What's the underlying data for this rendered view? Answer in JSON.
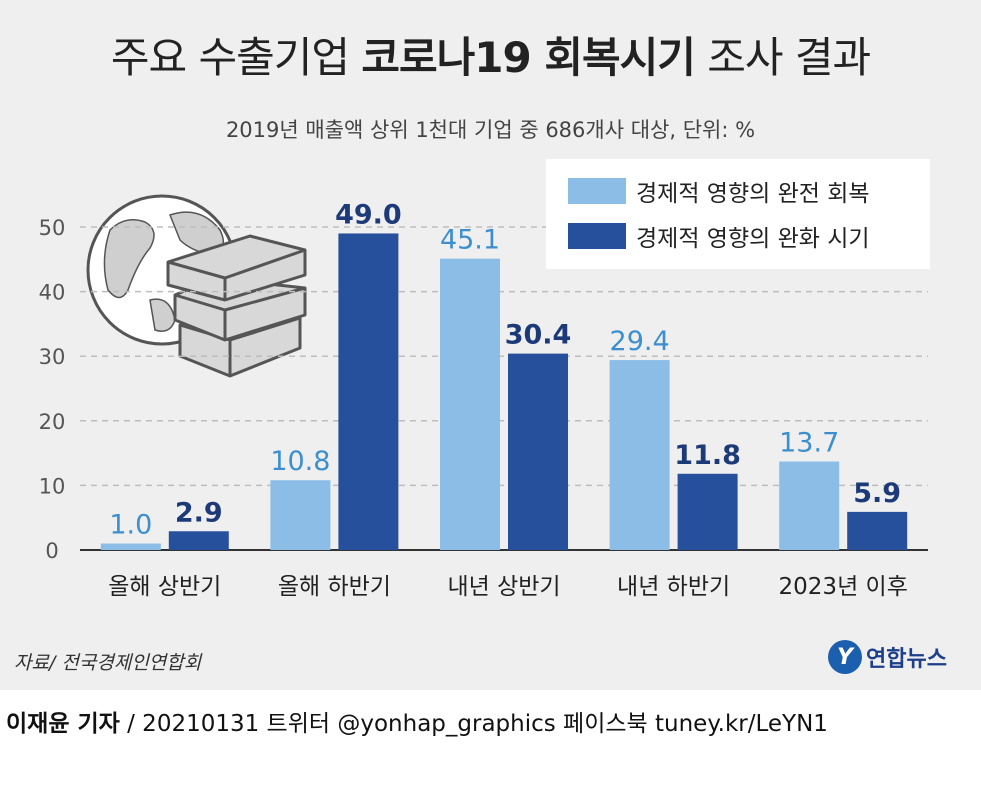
{
  "header": {
    "title_normal": "주요 수출기업 ",
    "title_bold": "코로나19 회복시기",
    "title_suffix": " 조사 결과",
    "subtitle": "2019년 매출액 상위 1천대 기업 중 686개사 대상, 단위: %"
  },
  "chart_data": {
    "type": "bar",
    "categories": [
      "올해 상반기",
      "올해 하반기",
      "내년 상반기",
      "내년 하반기",
      "2023년 이후"
    ],
    "series": [
      {
        "name": "경제적 영향의 완전 회복",
        "color": "#8bbde6",
        "label_color": "#3b8fd0",
        "values": [
          1.0,
          10.8,
          45.1,
          29.4,
          13.7
        ]
      },
      {
        "name": "경제적 영향의 완화 시기",
        "color": "#27509c",
        "label_color": "#1d3a78",
        "values": [
          2.9,
          49.0,
          30.4,
          11.8,
          5.9
        ]
      }
    ],
    "yticks": [
      0,
      10,
      20,
      30,
      40,
      50
    ],
    "ylim": [
      0,
      50
    ],
    "legend_position": "top-right",
    "grid": true
  },
  "footer": {
    "source": "자료/ 전국경제인연합회",
    "logo_text": "연합뉴스",
    "logo_mark": "Y",
    "reporter": "이재윤 기자",
    "credit_rest": " / 20210131   트위터 @yonhap_graphics  페이스북 tuney.kr/LeYN1"
  }
}
